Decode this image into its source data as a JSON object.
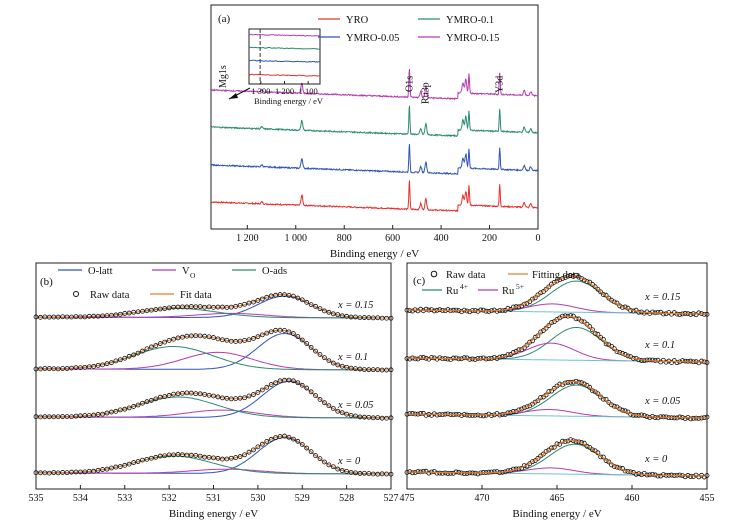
{
  "chart_data": [
    {
      "panel": "(a)",
      "type": "line",
      "xlabel": "Binding energy / eV",
      "xlim": [
        1350,
        0
      ],
      "x_ticks": [
        1200,
        1000,
        800,
        600,
        400,
        200,
        0
      ],
      "x_tick_labels": [
        "1 200",
        "1 000",
        "800",
        "600",
        "400",
        "200",
        "0"
      ],
      "x_reversed": true,
      "series": [
        {
          "name": "YRO",
          "color": "#e8302c",
          "offset": 0
        },
        {
          "name": "YMRO-0.05",
          "color": "#2f54b8",
          "offset": 1
        },
        {
          "name": "YMRO-0.1",
          "color": "#2d8a73",
          "offset": 2
        },
        {
          "name": "YMRO-0.15",
          "color": "#b43bb4",
          "offset": 3
        }
      ],
      "peaks": [
        {
          "x": 1140,
          "h": 2
        },
        {
          "x": 975,
          "h": 10
        },
        {
          "x": 531,
          "h": 30
        },
        {
          "x": 484,
          "h": 6
        },
        {
          "x": 463,
          "h": 11
        },
        {
          "x": 310,
          "h": 10
        },
        {
          "x": 298,
          "h": 14
        },
        {
          "x": 285,
          "h": 20
        },
        {
          "x": 158,
          "h": 22
        },
        {
          "x": 57,
          "h": 5
        },
        {
          "x": 30,
          "h": 4
        }
      ],
      "peak_labels": [
        {
          "x": 1303,
          "text": "Mg1s"
        },
        {
          "x": 531,
          "text": "O1s"
        },
        {
          "x": 465,
          "text": "Ru3p"
        },
        {
          "x": 158,
          "text": "Y3d"
        }
      ],
      "inset": {
        "xlabel": "Binding energy / eV",
        "xlim": [
          1350,
          1050
        ],
        "x_ticks": [
          1300,
          1200,
          1100
        ],
        "x_tick_labels": [
          "1 300",
          "1 200",
          "1 100"
        ],
        "marker_x": 1303
      }
    },
    {
      "panel": "(b)",
      "type": "line",
      "xlabel": "Binding energy / eV",
      "xlim": [
        535,
        527
      ],
      "x_ticks": [
        535,
        534,
        533,
        532,
        531,
        530,
        529,
        528,
        527
      ],
      "x_tick_labels": [
        "535",
        "534",
        "533",
        "532",
        "531",
        "530",
        "529",
        "528",
        "527"
      ],
      "x_reversed": true,
      "legend": [
        {
          "name": "O-latt",
          "color": "#2f54b8",
          "kind": "line"
        },
        {
          "name": "V",
          "sub": "O",
          "color": "#b43bb4",
          "kind": "line"
        },
        {
          "name": "O-ads",
          "color": "#2d8a73",
          "kind": "line"
        },
        {
          "name": "Raw data",
          "color": "#111111",
          "kind": "circle"
        },
        {
          "name": "Fit data",
          "color": "#e87d2c",
          "kind": "line"
        }
      ],
      "rows": [
        {
          "label": "x = 0",
          "olatt": {
            "c": 529.4,
            "a": 1.0
          },
          "vo": {
            "c": 530.7,
            "a": 0.12
          },
          "oads": {
            "c": 531.9,
            "a": 0.48
          }
        },
        {
          "label": "x = 0.05",
          "olatt": {
            "c": 529.3,
            "a": 0.98
          },
          "vo": {
            "c": 530.8,
            "a": 0.2
          },
          "oads": {
            "c": 531.8,
            "a": 0.55
          }
        },
        {
          "label": "x = 0.1",
          "olatt": {
            "c": 529.4,
            "a": 0.95
          },
          "vo": {
            "c": 530.9,
            "a": 0.45
          },
          "oads": {
            "c": 531.9,
            "a": 0.6
          }
        },
        {
          "label": "x = 0.15",
          "olatt": {
            "c": 529.4,
            "a": 0.72
          },
          "vo": {
            "c": 530.6,
            "a": 0.14
          },
          "oads": {
            "c": 531.8,
            "a": 0.3
          }
        }
      ]
    },
    {
      "panel": "(c)",
      "type": "line",
      "xlabel": "Binding energy / eV",
      "xlim": [
        475,
        455
      ],
      "x_ticks": [
        475,
        470,
        465,
        460,
        455
      ],
      "x_tick_labels": [
        "475",
        "470",
        "465",
        "460",
        "455"
      ],
      "x_reversed": true,
      "legend": [
        {
          "name": "Raw data",
          "color": "#111111",
          "kind": "circle"
        },
        {
          "name": "Fitting data",
          "color": "#e87d2c",
          "kind": "line"
        },
        {
          "name": "Ru",
          "sup": "4+",
          "color": "#2d8a73",
          "kind": "line"
        },
        {
          "name": "Ru",
          "sup": "5+",
          "color": "#b43bb4",
          "kind": "line"
        }
      ],
      "rows": [
        {
          "label": "x = 0",
          "ru4": {
            "c": 463.8,
            "a": 0.75
          },
          "ru5": {
            "c": 465.4,
            "a": 0.15
          }
        },
        {
          "label": "x = 0.05",
          "ru4": {
            "c": 463.7,
            "a": 0.78
          },
          "ru5": {
            "c": 465.5,
            "a": 0.16
          }
        },
        {
          "label": "x = 0.1",
          "ru4": {
            "c": 463.7,
            "a": 0.82
          },
          "ru5": {
            "c": 465.4,
            "a": 0.42
          }
        },
        {
          "label": "x = 0.15",
          "ru4": {
            "c": 463.7,
            "a": 0.78
          },
          "ru5": {
            "c": 465.3,
            "a": 0.2
          }
        }
      ]
    }
  ]
}
